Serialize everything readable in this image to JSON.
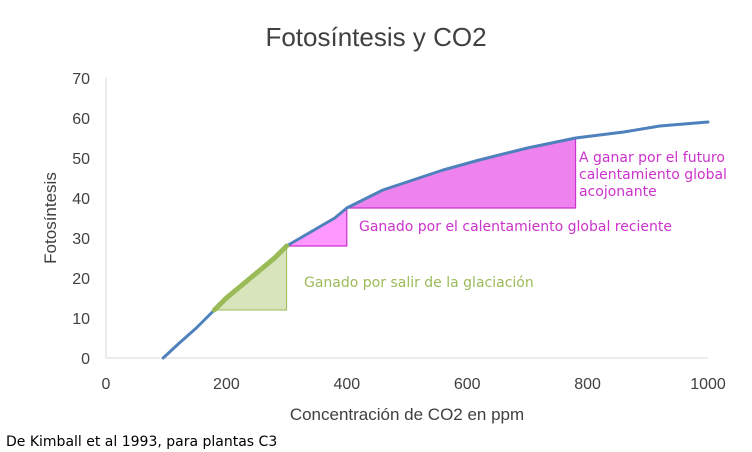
{
  "chart_data": {
    "type": "line",
    "title": "Fotosíntesis y CO2",
    "xlabel": "Concentración de CO2 en ppm",
    "ylabel": "Fotosíntesis",
    "xlim": [
      0,
      1000
    ],
    "ylim": [
      0,
      70
    ],
    "xticks": [
      0,
      200,
      400,
      600,
      800,
      1000
    ],
    "yticks": [
      0,
      10,
      20,
      30,
      40,
      50,
      60,
      70
    ],
    "grid": false,
    "series": [
      {
        "color": "#4f81bd",
        "x": [
          95,
          120,
          150,
          180,
          200,
          240,
          280,
          300,
          340,
          380,
          400,
          460,
          520,
          560,
          620,
          700,
          780,
          860,
          920,
          1000
        ],
        "y": [
          0,
          3.5,
          7.5,
          12,
          15,
          20,
          25,
          28,
          31.5,
          35,
          37.5,
          42,
          45,
          47,
          49.5,
          52.5,
          55,
          56.5,
          58,
          59
        ]
      }
    ],
    "highlight_series": {
      "color": "#9bbb59",
      "x": [
        180,
        200,
        240,
        280,
        300
      ],
      "y": [
        12,
        15,
        20,
        25,
        28
      ]
    },
    "annotations": [
      {
        "text": "Ganado por salir de la glaciación",
        "color": "#9bbb59",
        "fill": "#d8e4bc",
        "x_start": 180,
        "x_end": 300,
        "y_base": 12
      },
      {
        "text": "Ganado por el calentamiento global reciente",
        "color": "#cc33cc",
        "fill": "#ff99ff",
        "x_start": 300,
        "x_end": 400,
        "y_base": 28
      },
      {
        "lines": [
          "A ganar por el futuro",
          "calentamiento global",
          "acojonante"
        ],
        "color": "#cc33cc",
        "fill": "#ee82ee",
        "x_start": 400,
        "x_end": 780,
        "y_base": 37.5
      }
    ]
  },
  "source_note": "De Kimball et al 1993, para plantas C3"
}
